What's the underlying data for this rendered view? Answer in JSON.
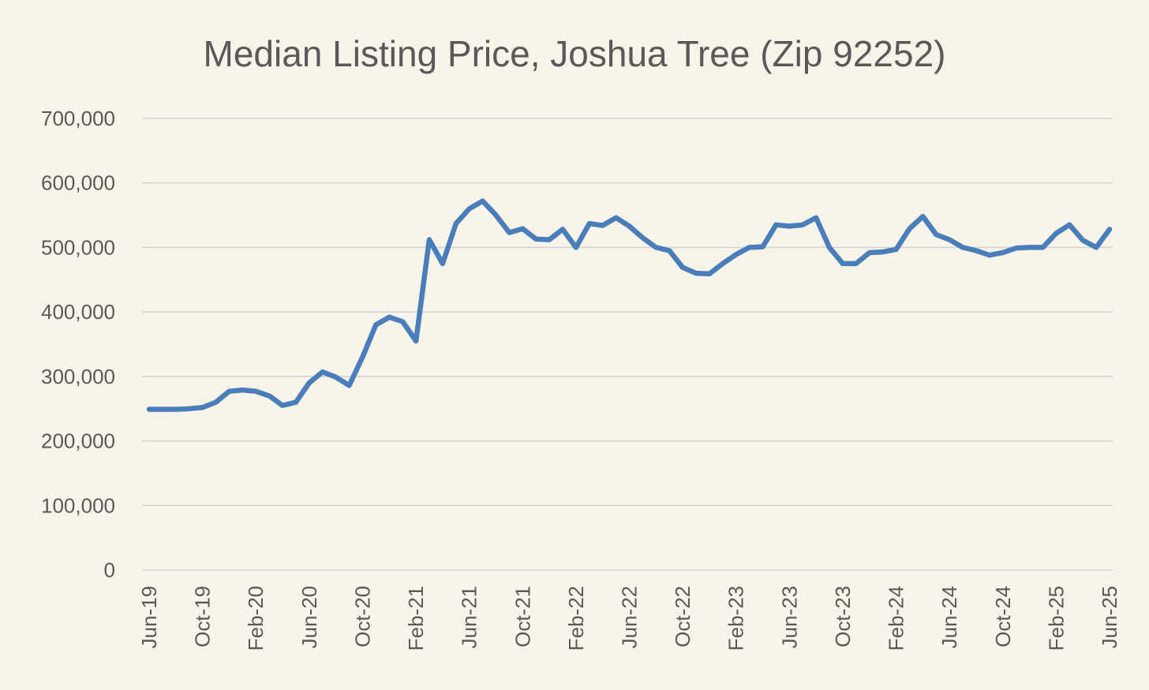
{
  "chart_data": {
    "type": "line",
    "title": "Median Listing Price, Joshua Tree (Zip 92252)",
    "xlabel": "",
    "ylabel": "",
    "ylim": [
      0,
      700000
    ],
    "y_ticks": [
      0,
      100000,
      200000,
      300000,
      400000,
      500000,
      600000,
      700000
    ],
    "y_tick_labels": [
      "0",
      "100,000",
      "200,000",
      "300,000",
      "400,000",
      "500,000",
      "600,000",
      "700,000"
    ],
    "x_tick_labels": [
      "Jun-19",
      "Oct-19",
      "Feb-20",
      "Jun-20",
      "Oct-20",
      "Feb-21",
      "Jun-21",
      "Oct-21",
      "Feb-22",
      "Jun-22",
      "Oct-22",
      "Feb-23",
      "Jun-23",
      "Oct-23",
      "Feb-24",
      "Jun-24",
      "Oct-24",
      "Feb-25",
      "Jun-25"
    ],
    "x_tick_every": 4,
    "grid": true,
    "legend": "none",
    "categories": [
      "Jun-19",
      "Jul-19",
      "Aug-19",
      "Sep-19",
      "Oct-19",
      "Nov-19",
      "Dec-19",
      "Jan-20",
      "Feb-20",
      "Mar-20",
      "Apr-20",
      "May-20",
      "Jun-20",
      "Jul-20",
      "Aug-20",
      "Sep-20",
      "Oct-20",
      "Nov-20",
      "Dec-20",
      "Jan-21",
      "Feb-21",
      "Mar-21",
      "Apr-21",
      "May-21",
      "Jun-21",
      "Jul-21",
      "Aug-21",
      "Sep-21",
      "Oct-21",
      "Nov-21",
      "Dec-21",
      "Jan-22",
      "Feb-22",
      "Mar-22",
      "Apr-22",
      "May-22",
      "Jun-22",
      "Jul-22",
      "Aug-22",
      "Sep-22",
      "Oct-22",
      "Nov-22",
      "Dec-22",
      "Jan-23",
      "Feb-23",
      "Mar-23",
      "Apr-23",
      "May-23",
      "Jun-23",
      "Jul-23",
      "Aug-23",
      "Sep-23",
      "Oct-23",
      "Nov-23",
      "Dec-23",
      "Jan-24",
      "Feb-24",
      "Mar-24",
      "Apr-24",
      "May-24",
      "Jun-24",
      "Jul-24",
      "Aug-24",
      "Sep-24",
      "Oct-24",
      "Nov-24",
      "Dec-24",
      "Jan-25",
      "Feb-25",
      "Mar-25",
      "Apr-25",
      "May-25",
      "Jun-25"
    ],
    "series": [
      {
        "color": "#4a7ebb",
        "values": [
          249000,
          249000,
          249000,
          250000,
          252000,
          260000,
          277000,
          279000,
          277000,
          270000,
          255000,
          260000,
          290000,
          307000,
          299000,
          286000,
          330000,
          380000,
          392000,
          385000,
          355000,
          512000,
          475000,
          537000,
          560000,
          572000,
          550000,
          523000,
          529000,
          513000,
          512000,
          528000,
          500000,
          537000,
          534000,
          546000,
          533000,
          515000,
          500000,
          495000,
          469000,
          460000,
          459000,
          475000,
          489000,
          500000,
          501000,
          535000,
          533000,
          535000,
          546000,
          500000,
          475000,
          475000,
          492000,
          493000,
          497000,
          529000,
          548000,
          520000,
          512000,
          500000,
          495000,
          488000,
          492000,
          499000,
          500000,
          500000,
          522000,
          535000,
          511000,
          500000,
          528000
        ]
      }
    ]
  }
}
